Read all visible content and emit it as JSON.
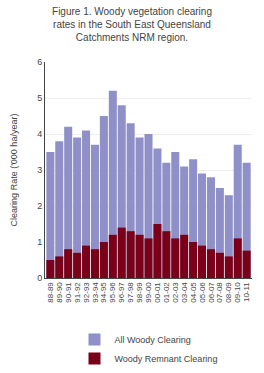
{
  "chart_data": {
    "type": "bar",
    "title": "Figure 1. Woody vegetation clearing rates in the South East Queensland Catchments NRM region.",
    "y_label": "Clearing Rate ('000 ha/year)",
    "categories": [
      "88-89",
      "89-90",
      "90-91",
      "91-92",
      "92-93",
      "93-94",
      "94-95",
      "95-96",
      "96-97",
      "97-98",
      "98-99",
      "99-00",
      "00-01",
      "01-02",
      "02-03",
      "03-04",
      "04-05",
      "05-06",
      "06-07",
      "07-08",
      "08-09",
      "09-10",
      "10-11"
    ],
    "series": [
      {
        "name": "All Woody Clearing",
        "color": "#9090c8",
        "values": [
          3.5,
          3.8,
          4.2,
          3.9,
          4.1,
          3.7,
          4.5,
          5.2,
          4.8,
          4.3,
          3.9,
          4.0,
          3.6,
          3.2,
          3.5,
          3.1,
          3.3,
          2.9,
          2.8,
          2.5,
          2.3,
          3.7,
          3.2
        ]
      },
      {
        "name": "Woody Remnant Clearing",
        "color": "#7a001a",
        "values": [
          0.5,
          0.6,
          0.8,
          0.7,
          0.9,
          0.8,
          1.0,
          1.2,
          1.4,
          1.3,
          1.2,
          1.1,
          1.5,
          1.3,
          1.1,
          1.2,
          1.0,
          0.9,
          0.8,
          0.7,
          0.6,
          1.1,
          0.76
        ]
      }
    ],
    "ylim": [
      0,
      6
    ],
    "yticks": [
      0,
      1,
      2,
      3,
      4,
      5,
      6
    ],
    "grid": true,
    "legend": "bottom",
    "stacked": false
  }
}
